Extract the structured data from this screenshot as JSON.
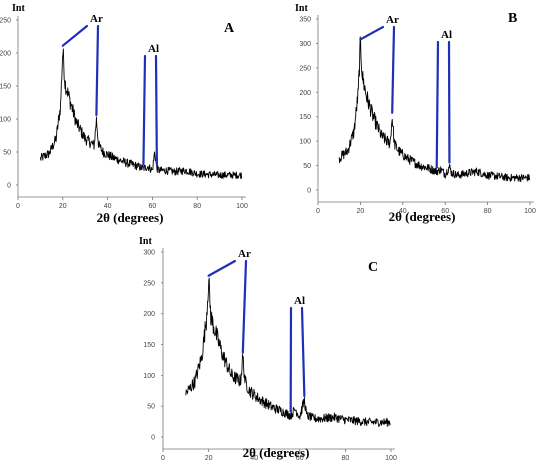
{
  "chart_data": [
    {
      "type": "line",
      "panel": "A",
      "ylabel": "Int",
      "xlabel": "2θ (degrees)",
      "xlim": [
        0,
        100
      ],
      "ylim": [
        0,
        250
      ],
      "xticks": [
        0,
        20,
        40,
        60,
        80,
        100
      ],
      "yticks": [
        0,
        50,
        100,
        150,
        200,
        250
      ],
      "series": [
        {
          "x": [
            10,
            14,
            17,
            19,
            20,
            21,
            23,
            26,
            30,
            34,
            35,
            36,
            38,
            42,
            48,
            52,
            56,
            58,
            60,
            61,
            62,
            63,
            66,
            70,
            75,
            80,
            85,
            90,
            95,
            100
          ],
          "values": [
            40,
            48,
            70,
            120,
            205,
            155,
            130,
            95,
            70,
            60,
            100,
            60,
            50,
            42,
            34,
            30,
            25,
            28,
            22,
            50,
            25,
            22,
            22,
            20,
            22,
            17,
            16,
            15,
            15,
            15
          ]
        }
      ],
      "annotations": [
        {
          "label": "Ar",
          "x": [
            20,
            35
          ]
        },
        {
          "label": "Al",
          "x": [
            56,
            62
          ]
        }
      ]
    },
    {
      "type": "line",
      "panel": "B",
      "ylabel": "Int",
      "xlabel": "2θ (degrees)",
      "xlim": [
        0,
        100
      ],
      "ylim": [
        0,
        350
      ],
      "xticks": [
        0,
        20,
        40,
        60,
        80,
        100
      ],
      "yticks": [
        0,
        50,
        100,
        150,
        200,
        250,
        300,
        350
      ],
      "series": [
        {
          "x": [
            10,
            14,
            17,
            19,
            20,
            21,
            23,
            26,
            30,
            34,
            35,
            36,
            38,
            42,
            48,
            52,
            56,
            58,
            60,
            62,
            63,
            66,
            70,
            75,
            80,
            85,
            90,
            95,
            100
          ],
          "values": [
            65,
            80,
            120,
            200,
            300,
            230,
            190,
            150,
            110,
            95,
            150,
            95,
            80,
            65,
            50,
            45,
            38,
            42,
            32,
            48,
            35,
            30,
            34,
            38,
            30,
            28,
            25,
            25,
            25
          ]
        }
      ],
      "annotations": [
        {
          "label": "Ar",
          "x": [
            20,
            35
          ]
        },
        {
          "label": "Al",
          "x": [
            56,
            62
          ]
        }
      ]
    },
    {
      "type": "line",
      "panel": "C",
      "ylabel": "Int",
      "xlabel": "2θ (degrees)",
      "xlim": [
        0,
        100
      ],
      "ylim": [
        0,
        300
      ],
      "xticks": [
        0,
        20,
        40,
        60,
        80,
        100
      ],
      "yticks": [
        0,
        50,
        100,
        150,
        200,
        250,
        300
      ],
      "series": [
        {
          "x": [
            10,
            14,
            17,
            19,
            20,
            21,
            23,
            26,
            30,
            34,
            35,
            36,
            38,
            42,
            48,
            52,
            56,
            58,
            60,
            62,
            63,
            66,
            70,
            75,
            80,
            85,
            90,
            95,
            100
          ],
          "values": [
            70,
            90,
            130,
            190,
            255,
            195,
            170,
            135,
            100,
            90,
            130,
            90,
            75,
            62,
            48,
            42,
            35,
            45,
            33,
            60,
            35,
            30,
            30,
            32,
            28,
            26,
            24,
            24,
            24
          ]
        }
      ],
      "annotations": [
        {
          "label": "Ar",
          "x": [
            20,
            35
          ]
        },
        {
          "label": "Al",
          "x": [
            56,
            62
          ]
        }
      ]
    }
  ]
}
